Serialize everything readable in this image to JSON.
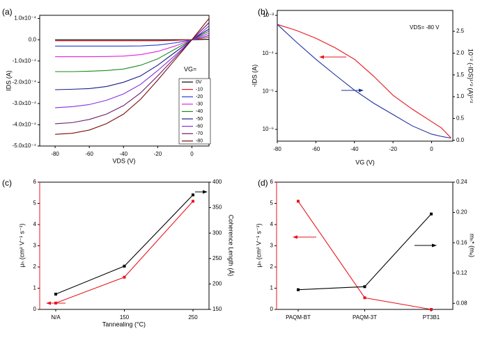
{
  "chart_data": [
    {
      "type": "line",
      "panel": "(a)",
      "xlabel": "VDS (V)",
      "ylabel": "IDS (A)",
      "x": [
        -80,
        -70,
        -60,
        -50,
        -40,
        -30,
        -20,
        -10,
        0,
        5,
        10
      ],
      "xlim": [
        -89,
        10
      ],
      "xticks": [
        -80,
        -60,
        -40,
        -20,
        0
      ],
      "ylim": [
        -0.0005,
        0.000115
      ],
      "yticks": [
        {
          "value": 0.0001,
          "label": "1.0x10⁻⁴"
        },
        {
          "value": 0,
          "label": "0.0"
        },
        {
          "value": -0.0001,
          "label": "-1.0x10⁻⁴"
        },
        {
          "value": -0.0002,
          "label": "-2.0x10⁻⁴"
        },
        {
          "value": -0.0003,
          "label": "-3.0x10⁻⁴"
        },
        {
          "value": -0.0004,
          "label": "-4.0x10⁻⁴"
        },
        {
          "value": -0.0005,
          "label": "-5.0x10⁻⁴"
        }
      ],
      "legend_title": "VG=",
      "legend": "lower right",
      "series": [
        {
          "name": "0V",
          "color": "#000000",
          "values": [
            0,
            0,
            0,
            0,
            0,
            0,
            0,
            0,
            0,
            1e-06,
            2e-06
          ]
        },
        {
          "name": "-10",
          "color": "#e8141c",
          "values": [
            -5e-06,
            -5e-06,
            -5e-06,
            -5e-06,
            -5e-06,
            -5e-06,
            -5e-06,
            -3e-06,
            0,
            5e-06,
            1.2e-05
          ]
        },
        {
          "name": "-20",
          "color": "#1f3fd0",
          "values": [
            -3e-05,
            -3e-05,
            -3e-05,
            -3e-05,
            -3e-05,
            -2.9e-05,
            -2.5e-05,
            -1.5e-05,
            0,
            1e-05,
            2e-05
          ]
        },
        {
          "name": "-30",
          "color": "#e020e0",
          "values": [
            -8e-05,
            -8e-05,
            -8e-05,
            -7.9e-05,
            -7.7e-05,
            -7e-05,
            -5.5e-05,
            -3e-05,
            0,
            1.5e-05,
            3e-05
          ]
        },
        {
          "name": "-40",
          "color": "#1a8a1a",
          "values": [
            -0.00015,
            -0.00015,
            -0.000148,
            -0.000145,
            -0.000138,
            -0.00012,
            -9e-05,
            -4.5e-05,
            0,
            2e-05,
            4e-05
          ]
        },
        {
          "name": "-50",
          "color": "#1a1a8c",
          "values": [
            -0.000235,
            -0.000233,
            -0.00023,
            -0.00022,
            -0.0002,
            -0.00017,
            -0.00012,
            -6e-05,
            0,
            2.5e-05,
            5e-05
          ]
        },
        {
          "name": "-60",
          "color": "#8a2be2",
          "values": [
            -0.00032,
            -0.000315,
            -0.000305,
            -0.000285,
            -0.000255,
            -0.00021,
            -0.000145,
            -7.5e-05,
            0,
            3e-05,
            6.5e-05
          ]
        },
        {
          "name": "-70",
          "color": "#6a1a6a",
          "values": [
            -0.000395,
            -0.00039,
            -0.000375,
            -0.00035,
            -0.00031,
            -0.00025,
            -0.00017,
            -8.5e-05,
            0,
            4e-05,
            8e-05
          ]
        },
        {
          "name": "-80",
          "color": "#7a0a0a",
          "values": [
            -0.000445,
            -0.00044,
            -0.000425,
            -0.000395,
            -0.00035,
            -0.00028,
            -0.00019,
            -9.5e-05,
            0,
            5e-05,
            0.0001
          ]
        }
      ]
    },
    {
      "type": "line",
      "panel": "(b)",
      "xlabel": "VG (V)",
      "ylabel": "-IDS (A)",
      "y2label": "10⁻² (-IDS)¹ᐟ² (A)¹ᐟ²",
      "annotation": "VDS= -80 V",
      "x": [
        -80,
        -70,
        -60,
        -50,
        -40,
        -30,
        -20,
        -10,
        0,
        5,
        10
      ],
      "xlim": [
        -80,
        11
      ],
      "xticks": [
        -80,
        -60,
        -40,
        -20,
        0
      ],
      "ylog": true,
      "ylim": [
        4.9e-07,
        0.00135
      ],
      "yticks": [
        {
          "value": 1e-06,
          "label": "10⁻⁶"
        },
        {
          "value": 1e-05,
          "label": "10⁻⁵"
        },
        {
          "value": 0.0001,
          "label": "10⁻⁴"
        },
        {
          "value": 0.001,
          "label": "10⁻³"
        }
      ],
      "y2lim": [
        -0.02,
        2.98
      ],
      "y2ticks": [
        {
          "value": 0,
          "label": "0.0"
        },
        {
          "value": 0.5,
          "label": "0.5"
        },
        {
          "value": 1,
          "label": "1.0"
        },
        {
          "value": 1.5,
          "label": "1.5"
        },
        {
          "value": 2,
          "label": "2.0"
        },
        {
          "value": 2.5,
          "label": "2.5"
        }
      ],
      "series": [
        {
          "color": "#e8141c",
          "values": [
            0.00058,
            0.0004,
            0.00025,
            0.00014,
            7e-05,
            2.5e-05,
            7.9e-06,
            3.4e-06,
            1.6e-06,
            1.1e-06,
            6e-07
          ]
        },
        {
          "color": "#1f2fa0",
          "axis": "y2",
          "values": [
            2.66,
            2.25,
            1.86,
            1.5,
            1.15,
            0.85,
            0.59,
            0.33,
            0.14,
            0.09,
            0.05
          ]
        }
      ]
    },
    {
      "type": "line",
      "panel": "(c)",
      "xlabel": "Tannealing (°C)",
      "ylabel": "μₕ (cm² V⁻¹ s⁻¹)",
      "y2label": "Coherence Length (Å)",
      "ylabel_color": "#e8141c",
      "categories": [
        "N/A",
        "150",
        "250"
      ],
      "ylim": [
        0,
        6
      ],
      "yticks": [
        0,
        1,
        2,
        3,
        4,
        5,
        6
      ],
      "y2lim": [
        150,
        400
      ],
      "y2ticks": [
        150,
        200,
        250,
        300,
        350,
        400
      ],
      "series": [
        {
          "color": "#e8141c",
          "marker": "square",
          "values": [
            0.3,
            1.52,
            5.1
          ]
        },
        {
          "color": "#000000",
          "marker": "square",
          "axis": "y2",
          "values": [
            180,
            235,
            375
          ]
        }
      ]
    },
    {
      "type": "line",
      "panel": "(d)",
      "ylabel": "μₕ (cm² V⁻¹ s⁻¹)",
      "y2label": "mₕ* (mₑ)",
      "ylabel_color": "#e8141c",
      "categories": [
        "PAQM-BT",
        "PAQM-3T",
        "PT3B1"
      ],
      "ylim": [
        0,
        6
      ],
      "yticks": [
        0,
        1,
        2,
        3,
        4,
        5,
        6
      ],
      "y2lim": [
        0.072,
        0.24
      ],
      "y2ticks": [
        0.08,
        0.12,
        0.16,
        {
          "value": 0.2,
          "label": "0.20"
        },
        0.24
      ],
      "series": [
        {
          "color": "#e8141c",
          "marker": "square",
          "values": [
            5.1,
            0.55,
            0.0
          ]
        },
        {
          "color": "#000000",
          "marker": "square",
          "axis": "y2",
          "values": [
            0.098,
            0.102,
            0.198
          ]
        }
      ]
    }
  ]
}
